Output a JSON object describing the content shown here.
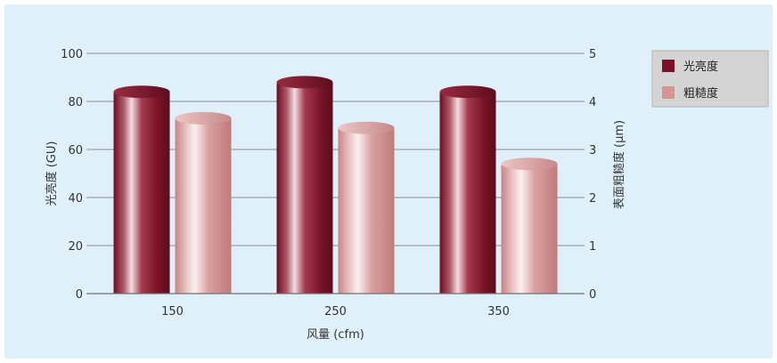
{
  "chart_data": {
    "type": "bar",
    "categories": [
      "150",
      "250",
      "350"
    ],
    "series": [
      {
        "name": "光亮度",
        "axis": "left",
        "color": "#7a1228",
        "values": [
          84,
          88,
          84
        ]
      },
      {
        "name": "粗糙度",
        "axis": "right",
        "color": "#d49595",
        "values": [
          3.65,
          3.45,
          2.7
        ]
      }
    ],
    "xlabel": "风量 (cfm)",
    "ylabel": "光亮度 (GU)",
    "y2label": "表面粗糙度 (μm)",
    "ylim": [
      0,
      100
    ],
    "y2lim": [
      0,
      5
    ],
    "yticks": [
      "0",
      "20",
      "40",
      "60",
      "80",
      "100"
    ],
    "y2ticks": [
      "0",
      "1",
      "2",
      "3",
      "4",
      "5"
    ],
    "grid": true,
    "legend": "top-right",
    "background": "#dff0fa"
  }
}
